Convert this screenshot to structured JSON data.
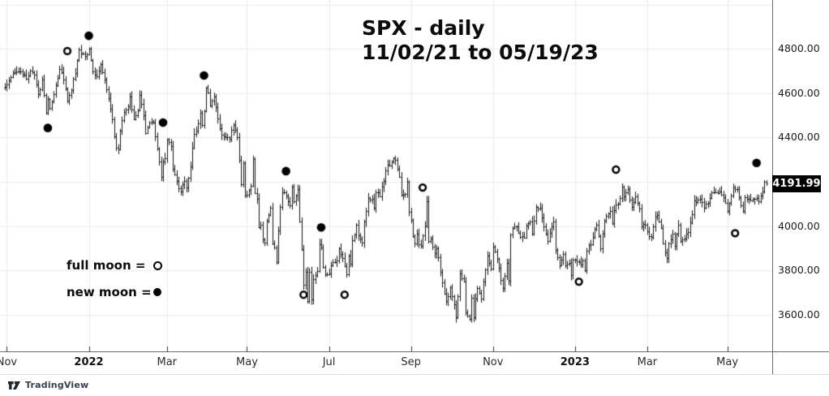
{
  "title": {
    "line1": "SPX - daily",
    "line2": "11/02/21 to 05/19/23"
  },
  "legend": {
    "full_moon_label": "full moon =",
    "new_moon_label": "new moon =",
    "full_moon_symbol": "open-circle",
    "new_moon_symbol": "filled-circle"
  },
  "price_axis": {
    "last_price_label": "4191.99",
    "labels": [
      {
        "text": "4800.00",
        "value": 4800
      },
      {
        "text": "4600.00",
        "value": 4600
      },
      {
        "text": "4400.00",
        "value": 4400
      },
      {
        "text": "4000.00",
        "value": 4000
      },
      {
        "text": "3800.00",
        "value": 3800
      },
      {
        "text": "3600.00",
        "value": 3600
      }
    ]
  },
  "time_axis": {
    "ticks": [
      {
        "label": "Nov",
        "day": 1,
        "bold": false
      },
      {
        "label": "2022",
        "day": 43,
        "bold": true
      },
      {
        "label": "Mar",
        "day": 83,
        "bold": false
      },
      {
        "label": "May",
        "day": 124,
        "bold": false
      },
      {
        "label": "Jul",
        "day": 166,
        "bold": false
      },
      {
        "label": "Sep",
        "day": 208,
        "bold": false
      },
      {
        "label": "Nov",
        "day": 250,
        "bold": false
      },
      {
        "label": "2023",
        "day": 292,
        "bold": true
      },
      {
        "label": "Mar",
        "day": 329,
        "bold": false
      },
      {
        "label": "May",
        "day": 370,
        "bold": false
      }
    ]
  },
  "watermark": {
    "brand": "TradingView"
  },
  "colors": {
    "bar": "#141414",
    "grid": "#ececec",
    "axis_line": "#6b6b6b",
    "tick": "#333333",
    "badge_bg": "#000000",
    "badge_text": "#ffffff",
    "marker": "#000000",
    "logo": "#1d2330"
  },
  "chart_data": {
    "type": "ohlc-bar",
    "symbol": "SPX",
    "interval": "daily",
    "title": "SPX - daily 11/02/21 to 05/19/23",
    "date_start": "11/02/21",
    "date_end": "05/19/23",
    "last_close": 4191.99,
    "ylim": [
      3450,
      5000
    ],
    "grid_levels": [
      5000,
      4800,
      4600,
      4400,
      4200,
      4000,
      3800,
      3600
    ],
    "total_days": 391,
    "close_anchors": [
      [
        0,
        4630
      ],
      [
        2,
        4655
      ],
      [
        4,
        4685
      ],
      [
        7,
        4702
      ],
      [
        9,
        4690
      ],
      [
        11,
        4670
      ],
      [
        13,
        4700
      ],
      [
        15,
        4688
      ],
      [
        17,
        4595
      ],
      [
        19,
        4655
      ],
      [
        21,
        4513
      ],
      [
        22,
        4577
      ],
      [
        23,
        4538
      ],
      [
        25,
        4591
      ],
      [
        28,
        4710
      ],
      [
        30,
        4669
      ],
      [
        32,
        4568
      ],
      [
        34,
        4621
      ],
      [
        36,
        4696
      ],
      [
        38,
        4791
      ],
      [
        40,
        4778
      ],
      [
        41,
        4766
      ],
      [
        43,
        4797
      ],
      [
        45,
        4700
      ],
      [
        47,
        4677
      ],
      [
        49,
        4726
      ],
      [
        51,
        4663
      ],
      [
        53,
        4577
      ],
      [
        55,
        4483
      ],
      [
        56,
        4410
      ],
      [
        57,
        4356
      ],
      [
        58,
        4350
      ],
      [
        59,
        4432
      ],
      [
        61,
        4516
      ],
      [
        63,
        4546
      ],
      [
        64,
        4589
      ],
      [
        66,
        4477
      ],
      [
        68,
        4522
      ],
      [
        69,
        4587
      ],
      [
        71,
        4504
      ],
      [
        72,
        4418
      ],
      [
        74,
        4471
      ],
      [
        76,
        4475
      ],
      [
        78,
        4349
      ],
      [
        80,
        4225
      ],
      [
        81,
        4288
      ],
      [
        82,
        4306
      ],
      [
        83,
        4386
      ],
      [
        85,
        4363
      ],
      [
        86,
        4259
      ],
      [
        88,
        4201
      ],
      [
        89,
        4170
      ],
      [
        90,
        4157
      ],
      [
        92,
        4204
      ],
      [
        93,
        4173
      ],
      [
        95,
        4262
      ],
      [
        96,
        4358
      ],
      [
        97,
        4412
      ],
      [
        99,
        4461
      ],
      [
        100,
        4511
      ],
      [
        101,
        4456
      ],
      [
        102,
        4520
      ],
      [
        103,
        4631
      ],
      [
        104,
        4602
      ],
      [
        105,
        4546
      ],
      [
        107,
        4582
      ],
      [
        109,
        4488
      ],
      [
        111,
        4412
      ],
      [
        113,
        4397
      ],
      [
        115,
        4392
      ],
      [
        117,
        4462
      ],
      [
        119,
        4393
      ],
      [
        120,
        4296
      ],
      [
        121,
        4184
      ],
      [
        122,
        4287
      ],
      [
        123,
        4132
      ],
      [
        125,
        4155
      ],
      [
        126,
        4175
      ],
      [
        127,
        4300
      ],
      [
        128,
        4147
      ],
      [
        129,
        4124
      ],
      [
        130,
        3991
      ],
      [
        131,
        4001
      ],
      [
        132,
        3935
      ],
      [
        133,
        3930
      ],
      [
        134,
        4024
      ],
      [
        136,
        4089
      ],
      [
        137,
        3924
      ],
      [
        138,
        3901
      ],
      [
        139,
        3840
      ],
      [
        140,
        3974
      ],
      [
        141,
        4088
      ],
      [
        142,
        4158
      ],
      [
        144,
        4132
      ],
      [
        146,
        4101
      ],
      [
        147,
        4177
      ],
      [
        148,
        4109
      ],
      [
        150,
        4160
      ],
      [
        151,
        4017
      ],
      [
        152,
        3900
      ],
      [
        153,
        3735
      ],
      [
        154,
        3790
      ],
      [
        155,
        3666
      ],
      [
        156,
        3790
      ],
      [
        157,
        3675
      ],
      [
        158,
        3764
      ],
      [
        160,
        3796
      ],
      [
        161,
        3912
      ],
      [
        162,
        3900
      ],
      [
        163,
        3822
      ],
      [
        164,
        3785
      ],
      [
        166,
        3785
      ],
      [
        167,
        3825
      ],
      [
        168,
        3831
      ],
      [
        170,
        3845
      ],
      [
        171,
        3902
      ],
      [
        173,
        3854
      ],
      [
        175,
        3790
      ],
      [
        176,
        3863
      ],
      [
        177,
        3831
      ],
      [
        178,
        3937
      ],
      [
        179,
        3960
      ],
      [
        180,
        3999
      ],
      [
        181,
        3961
      ],
      [
        183,
        3921
      ],
      [
        184,
        4024
      ],
      [
        185,
        4072
      ],
      [
        186,
        4130
      ],
      [
        188,
        4119
      ],
      [
        189,
        4091
      ],
      [
        190,
        4155
      ],
      [
        192,
        4140
      ],
      [
        194,
        4210
      ],
      [
        196,
        4280
      ],
      [
        197,
        4274
      ],
      [
        199,
        4305
      ],
      [
        200,
        4292
      ],
      [
        202,
        4228
      ],
      [
        203,
        4138
      ],
      [
        205,
        4141
      ],
      [
        206,
        4199
      ],
      [
        207,
        4058
      ],
      [
        208,
        4030
      ],
      [
        209,
        3955
      ],
      [
        210,
        3924
      ],
      [
        211,
        3967
      ],
      [
        212,
        3924
      ],
      [
        213,
        3908
      ],
      [
        215,
        4006
      ],
      [
        216,
        4110
      ],
      [
        217,
        3933
      ],
      [
        218,
        3946
      ],
      [
        220,
        3873
      ],
      [
        221,
        3900
      ],
      [
        222,
        3856
      ],
      [
        223,
        3790
      ],
      [
        225,
        3693
      ],
      [
        226,
        3655
      ],
      [
        228,
        3719
      ],
      [
        230,
        3640
      ],
      [
        231,
        3586
      ],
      [
        232,
        3678
      ],
      [
        233,
        3791
      ],
      [
        235,
        3744
      ],
      [
        236,
        3612
      ],
      [
        238,
        3577
      ],
      [
        239,
        3670
      ],
      [
        240,
        3583
      ],
      [
        241,
        3678
      ],
      [
        242,
        3720
      ],
      [
        244,
        3666
      ],
      [
        245,
        3753
      ],
      [
        247,
        3859
      ],
      [
        249,
        3808
      ],
      [
        250,
        3901
      ],
      [
        252,
        3856
      ],
      [
        254,
        3760
      ],
      [
        255,
        3720
      ],
      [
        257,
        3829
      ],
      [
        258,
        3749
      ],
      [
        259,
        3956
      ],
      [
        260,
        3993
      ],
      [
        262,
        3992
      ],
      [
        264,
        3947
      ],
      [
        266,
        3950
      ],
      [
        267,
        4004
      ],
      [
        269,
        4027
      ],
      [
        270,
        3964
      ],
      [
        272,
        4080
      ],
      [
        274,
        4077
      ],
      [
        276,
        3999
      ],
      [
        278,
        3934
      ],
      [
        280,
        3991
      ],
      [
        281,
        4020
      ],
      [
        282,
        3895
      ],
      [
        284,
        3818
      ],
      [
        286,
        3879
      ],
      [
        287,
        3822
      ],
      [
        289,
        3830
      ],
      [
        290,
        3783
      ],
      [
        291,
        3849
      ],
      [
        293,
        3840
      ],
      [
        295,
        3824
      ],
      [
        296,
        3853
      ],
      [
        297,
        3808
      ],
      [
        298,
        3895
      ],
      [
        300,
        3919
      ],
      [
        302,
        3983
      ],
      [
        303,
        3999
      ],
      [
        305,
        3898
      ],
      [
        306,
        3973
      ],
      [
        307,
        4020
      ],
      [
        309,
        4060
      ],
      [
        310,
        4071
      ],
      [
        311,
        4018
      ],
      [
        312,
        4077
      ],
      [
        315,
        4119
      ],
      [
        316,
        4180
      ],
      [
        317,
        4136
      ],
      [
        319,
        4164
      ],
      [
        321,
        4082
      ],
      [
        323,
        4137
      ],
      [
        325,
        4079
      ],
      [
        326,
        3997
      ],
      [
        328,
        4012
      ],
      [
        329,
        3970
      ],
      [
        331,
        3951
      ],
      [
        333,
        4046
      ],
      [
        334,
        4048
      ],
      [
        336,
        3992
      ],
      [
        337,
        3918
      ],
      [
        339,
        3856
      ],
      [
        340,
        3920
      ],
      [
        342,
        3960
      ],
      [
        343,
        3916
      ],
      [
        345,
        4003
      ],
      [
        346,
        3937
      ],
      [
        348,
        3948
      ],
      [
        350,
        3977
      ],
      [
        352,
        4051
      ],
      [
        353,
        4109
      ],
      [
        356,
        4124
      ],
      [
        358,
        4090
      ],
      [
        360,
        4109
      ],
      [
        362,
        4147
      ],
      [
        364,
        4151
      ],
      [
        366,
        4154
      ],
      [
        368,
        4137
      ],
      [
        370,
        4071
      ],
      [
        372,
        4135
      ],
      [
        373,
        4169
      ],
      [
        375,
        4168
      ],
      [
        377,
        4091
      ],
      [
        378,
        4061
      ],
      [
        379,
        4136
      ],
      [
        381,
        4119
      ],
      [
        383,
        4124
      ],
      [
        385,
        4124
      ],
      [
        386,
        4110
      ],
      [
        388,
        4159
      ],
      [
        389,
        4198
      ],
      [
        390,
        4192
      ]
    ],
    "moon_markers": [
      {
        "day": 22,
        "price": 4443,
        "phase": "new"
      },
      {
        "day": 32,
        "price": 4790,
        "phase": "full"
      },
      {
        "day": 43,
        "price": 4859,
        "phase": "new"
      },
      {
        "day": 81,
        "price": 4467,
        "phase": "new"
      },
      {
        "day": 102,
        "price": 4680,
        "phase": "new"
      },
      {
        "day": 144,
        "price": 4248,
        "phase": "new"
      },
      {
        "day": 153,
        "price": 3690,
        "phase": "full"
      },
      {
        "day": 162,
        "price": 3994,
        "phase": "new"
      },
      {
        "day": 174,
        "price": 3690,
        "phase": "full"
      },
      {
        "day": 214,
        "price": 4174,
        "phase": "full"
      },
      {
        "day": 294,
        "price": 3749,
        "phase": "full"
      },
      {
        "day": 313,
        "price": 4255,
        "phase": "full"
      },
      {
        "day": 374,
        "price": 3968,
        "phase": "full"
      },
      {
        "day": 385,
        "price": 4285,
        "phase": "new"
      }
    ]
  }
}
